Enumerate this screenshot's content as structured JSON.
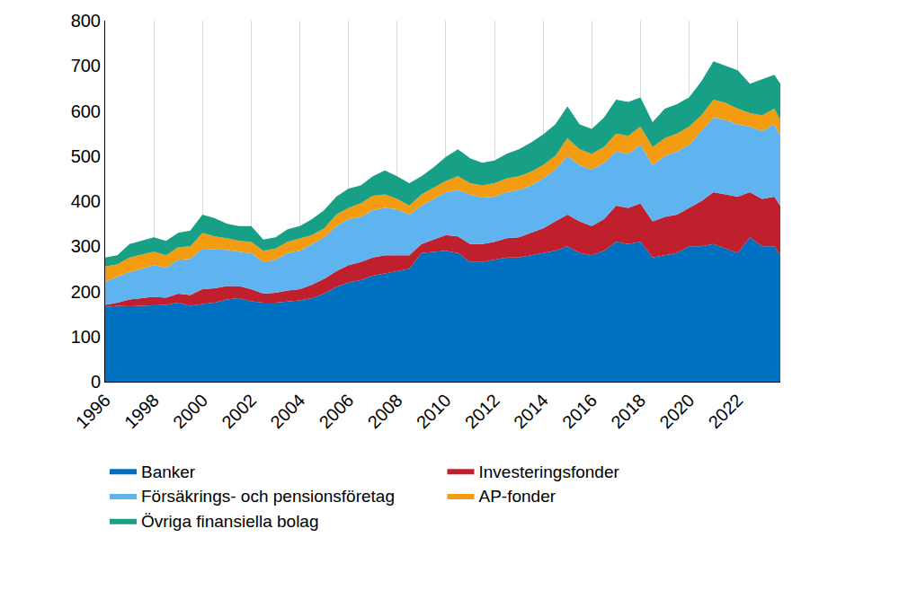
{
  "chart_data": {
    "type": "area",
    "stacked": true,
    "grid": true,
    "legend": "bottom",
    "x": [
      1996.0,
      1996.5,
      1997.0,
      1997.5,
      1998.0,
      1998.5,
      1999.0,
      1999.5,
      2000.0,
      2000.5,
      2001.0,
      2001.5,
      2002.0,
      2002.5,
      2003.0,
      2003.5,
      2004.0,
      2004.5,
      2005.0,
      2005.5,
      2006.0,
      2006.5,
      2007.0,
      2007.5,
      2008.0,
      2008.5,
      2009.0,
      2009.5,
      2010.0,
      2010.5,
      2011.0,
      2011.5,
      2012.0,
      2012.5,
      2013.0,
      2013.5,
      2014.0,
      2014.5,
      2015.0,
      2015.5,
      2016.0,
      2016.5,
      2017.0,
      2017.5,
      2018.0,
      2018.5,
      2019.0,
      2019.5,
      2020.0,
      2020.5,
      2021.0,
      2021.5,
      2022.0,
      2022.5,
      2023.0,
      2023.5,
      2023.75
    ],
    "xlim": [
      1996,
      2023.75
    ],
    "xticks": [
      1996,
      1998,
      2000,
      2002,
      2004,
      2006,
      2008,
      2010,
      2012,
      2014,
      2016,
      2018,
      2020,
      2022
    ],
    "ylim": [
      0,
      800
    ],
    "yticks": [
      0,
      100,
      200,
      300,
      400,
      500,
      600,
      700,
      800
    ],
    "series": [
      {
        "name": "Banker",
        "color": "#0070c0",
        "values": [
          165,
          168,
          167,
          168,
          170,
          170,
          175,
          168,
          172,
          175,
          182,
          185,
          178,
          175,
          175,
          178,
          180,
          185,
          195,
          210,
          220,
          225,
          235,
          240,
          245,
          250,
          285,
          288,
          290,
          285,
          265,
          265,
          270,
          275,
          275,
          280,
          285,
          290,
          300,
          285,
          280,
          290,
          310,
          305,
          310,
          275,
          280,
          285,
          300,
          300,
          305,
          295,
          285,
          320,
          300,
          300,
          280
        ]
      },
      {
        "name": "Investeringsfonder",
        "color": "#c0202e",
        "values": [
          5,
          7,
          15,
          17,
          18,
          16,
          20,
          24,
          33,
          32,
          30,
          27,
          27,
          20,
          22,
          24,
          25,
          30,
          33,
          35,
          38,
          40,
          40,
          40,
          35,
          30,
          20,
          27,
          35,
          37,
          40,
          40,
          40,
          43,
          45,
          50,
          55,
          65,
          70,
          70,
          65,
          70,
          80,
          80,
          85,
          80,
          85,
          85,
          85,
          100,
          115,
          120,
          125,
          100,
          105,
          110,
          110
        ]
      },
      {
        "name": "Försäkrings- och pensionsföretag",
        "color": "#5fb4f0",
        "values": [
          52,
          57,
          61,
          65,
          70,
          66,
          75,
          80,
          90,
          86,
          80,
          76,
          80,
          70,
          73,
          83,
          85,
          90,
          92,
          100,
          102,
          100,
          105,
          105,
          102,
          90,
          85,
          90,
          95,
          103,
          110,
          103,
          100,
          102,
          105,
          105,
          110,
          115,
          130,
          125,
          125,
          125,
          120,
          120,
          130,
          125,
          135,
          140,
          140,
          155,
          165,
          165,
          160,
          145,
          150,
          160,
          155
        ]
      },
      {
        "name": "AP-fonder",
        "color": "#f39c12",
        "values": [
          33,
          28,
          32,
          32,
          30,
          28,
          28,
          28,
          35,
          29,
          26,
          24,
          25,
          25,
          25,
          25,
          28,
          20,
          20,
          25,
          25,
          30,
          32,
          30,
          23,
          20,
          25,
          25,
          25,
          30,
          25,
          27,
          30,
          30,
          30,
          30,
          30,
          30,
          40,
          35,
          35,
          35,
          40,
          40,
          40,
          40,
          40,
          40,
          40,
          35,
          40,
          38,
          35,
          30,
          35,
          35,
          35
        ]
      },
      {
        "name": "Övriga finansiella bolag",
        "color": "#17a085",
        "values": [
          20,
          20,
          30,
          30,
          32,
          32,
          32,
          35,
          40,
          40,
          32,
          33,
          35,
          25,
          25,
          28,
          27,
          35,
          40,
          40,
          43,
          40,
          43,
          53,
          50,
          50,
          40,
          45,
          53,
          60,
          55,
          50,
          50,
          55,
          60,
          65,
          68,
          70,
          70,
          55,
          55,
          65,
          75,
          75,
          65,
          55,
          65,
          65,
          65,
          75,
          85,
          82,
          85,
          65,
          80,
          75,
          80
        ]
      }
    ]
  }
}
